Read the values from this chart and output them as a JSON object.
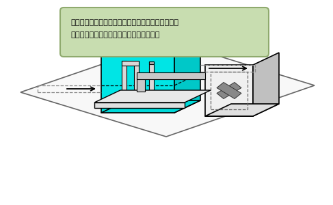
{
  "title_line1": "グリストラップ内の油分とスカムをポンピングして",
  "title_line2": "生物学的処理する有機性排水処理装置の例",
  "title_bg_color": "#c8ddb0",
  "title_border_color": "#8faa6e",
  "background_color": "#ffffff",
  "tank_fill_front": "#00e5e5",
  "tank_fill_right": "#00c8c8",
  "tank_fill_top": "#00d8d8",
  "tank_edge_color": "#000000",
  "box_front_color": "#f0f0f0",
  "box_right_color": "#c0c0c0",
  "box_top_color": "#e0e0e0",
  "box_edge_color": "#000000",
  "platform_fill": "#f8f8f8",
  "platform_edge": "#666666",
  "pipe_fill": "#c8c8c8",
  "pipe_edge": "#000000",
  "lid_fill": "#e8e8e8",
  "lid_edge": "#000000",
  "dashed_color": "#888888",
  "arrow_color": "#000000"
}
